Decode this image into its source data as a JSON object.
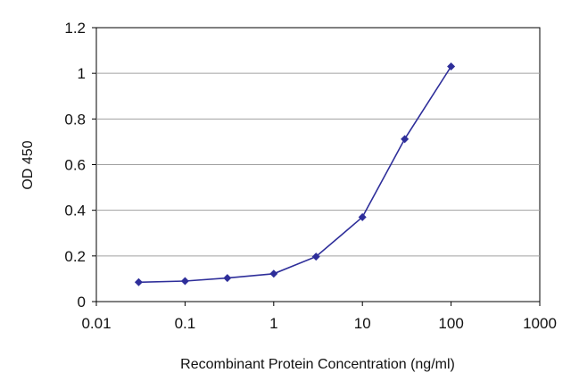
{
  "chart_data": {
    "type": "line",
    "xlabel": "Recombinant Protein Concentration (ng/ml)",
    "ylabel": "OD 450",
    "x_scale": "log",
    "xlim": [
      0.01,
      1000
    ],
    "ylim": [
      0,
      1.2
    ],
    "x_ticks": [
      0.01,
      0.1,
      1,
      10,
      100,
      1000
    ],
    "x_tick_labels": [
      "0.01",
      "0.1",
      "1",
      "10",
      "100",
      "1000"
    ],
    "y_ticks": [
      0,
      0.2,
      0.4,
      0.6,
      0.8,
      1,
      1.2
    ],
    "y_tick_labels": [
      "0",
      "0.2",
      "0.4",
      "0.6",
      "0.8",
      "1",
      "1.2"
    ],
    "grid": "horizontal",
    "series": [
      {
        "color": "#2e2e9a",
        "x": [
          0.03,
          0.1,
          0.3,
          1,
          3,
          10,
          30,
          100
        ],
        "y": [
          0.085,
          0.09,
          0.103,
          0.122,
          0.197,
          0.37,
          0.712,
          1.03
        ]
      }
    ]
  },
  "colors": {
    "series": "#2e2e9a",
    "grid": "#a0a0a0",
    "axis": "#000000"
  }
}
